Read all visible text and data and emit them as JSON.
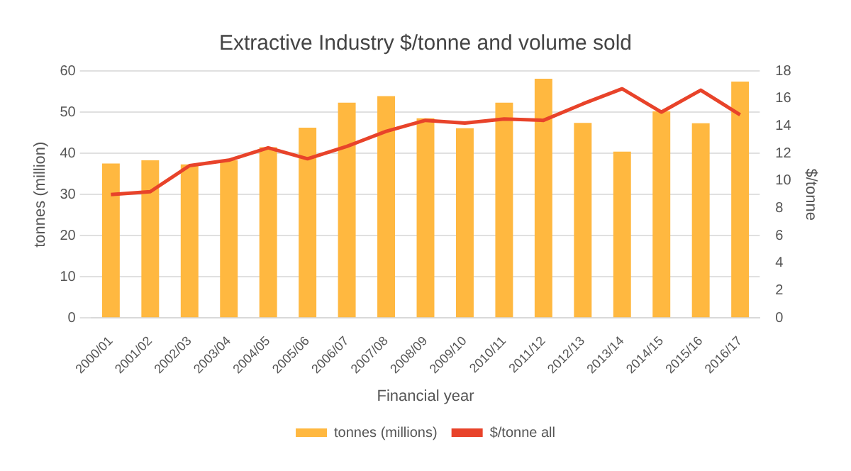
{
  "chart_data": {
    "type": "bar",
    "title": "Extractive Industry $/tonne and volume sold",
    "xlabel": "Financial year",
    "ylabel": "tonnes (million)",
    "y2label": "$/tonne",
    "categories": [
      "2000/01",
      "2001/02",
      "2002/03",
      "2003/04",
      "2004/05",
      "2005/06",
      "2006/07",
      "2007/08",
      "2008/09",
      "2009/10",
      "2010/11",
      "2011/12",
      "2012/13",
      "2013/14",
      "2014/15",
      "2015/16",
      "2016/17"
    ],
    "series": [
      {
        "name": "tonnes (millions)",
        "color": "#ffb840",
        "values": [
          37.5,
          38.3,
          37.3,
          38.3,
          41.5,
          46.2,
          52.3,
          53.9,
          48.5,
          46.1,
          52.3,
          58.1,
          47.4,
          40.4,
          50.2,
          47.3,
          57.4
        ]
      },
      {
        "name": "$/tonne all",
        "type": "line",
        "axis": "y2",
        "color": "#e8432a",
        "values": [
          9.0,
          9.2,
          11.1,
          11.5,
          12.4,
          11.6,
          12.5,
          13.6,
          14.4,
          14.2,
          14.5,
          14.4,
          15.6,
          16.7,
          15.0,
          16.6,
          14.8
        ]
      }
    ],
    "ylim": [
      0,
      60
    ],
    "yticks": [
      0,
      10,
      20,
      30,
      40,
      50,
      60
    ],
    "y2lim": [
      0,
      18
    ],
    "y2ticks": [
      0,
      2,
      4,
      6,
      8,
      10,
      12,
      14,
      16,
      18
    ],
    "grid": "y",
    "legend": "bottom",
    "marker": "none"
  }
}
